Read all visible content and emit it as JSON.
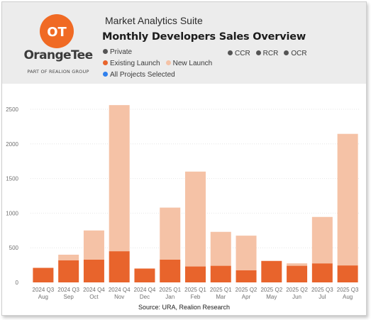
{
  "header": {
    "app_title": "Market Analytics Suite",
    "dashboard_title": "Monthly Developers Sales Overview",
    "logo_glyph": "OT",
    "brand_name": "OrangeTee",
    "brand_tagline": "PART OF REALION GROUP"
  },
  "filters": {
    "segment": {
      "label": "Private",
      "color": "#555555"
    },
    "regions": [
      {
        "label": "CCR",
        "color": "#555555"
      },
      {
        "label": "RCR",
        "color": "#555555"
      },
      {
        "label": "OCR",
        "color": "#555555"
      }
    ],
    "launch_types": [
      {
        "label": "Existing Launch",
        "color": "#e8642c"
      },
      {
        "label": "New Launch",
        "color": "#f5c2a6"
      }
    ],
    "projects": {
      "label": "All Projects Selected",
      "color": "#2f80ed"
    }
  },
  "colors": {
    "existing": "#e8642c",
    "new": "#f5c2a6",
    "gridline": "#e6e6e6",
    "tick_text": "#707070"
  },
  "chart_data": {
    "type": "bar",
    "stacked": true,
    "categories": [
      [
        "2024 Q3",
        "Aug"
      ],
      [
        "2024 Q3",
        "Sep"
      ],
      [
        "2024 Q4",
        "Oct"
      ],
      [
        "2024 Q4",
        "Nov"
      ],
      [
        "2024 Q4",
        "Dec"
      ],
      [
        "2025 Q1",
        "Jan"
      ],
      [
        "2025 Q1",
        "Feb"
      ],
      [
        "2025 Q1",
        "Mar"
      ],
      [
        "2025 Q2",
        "Apr"
      ],
      [
        "2025 Q2",
        "May"
      ],
      [
        "2025 Q2",
        "Jun"
      ],
      [
        "2025 Q3",
        "Jul"
      ],
      [
        "2025 Q3",
        "Aug"
      ]
    ],
    "series": [
      {
        "name": "Existing Launch",
        "color": "#e8642c",
        "values": [
          210,
          320,
          330,
          450,
          200,
          330,
          230,
          240,
          175,
          310,
          240,
          275,
          245
        ]
      },
      {
        "name": "New Launch",
        "color": "#f5c2a6",
        "values": [
          0,
          80,
          420,
          2110,
          0,
          750,
          1370,
          490,
          500,
          0,
          35,
          670,
          1900
        ]
      }
    ],
    "ylim": [
      0,
      2500
    ],
    "yticks": [
      0,
      500,
      1000,
      1500,
      2000,
      2500
    ],
    "grid": true,
    "source": "Source: URA, Realion Research"
  }
}
